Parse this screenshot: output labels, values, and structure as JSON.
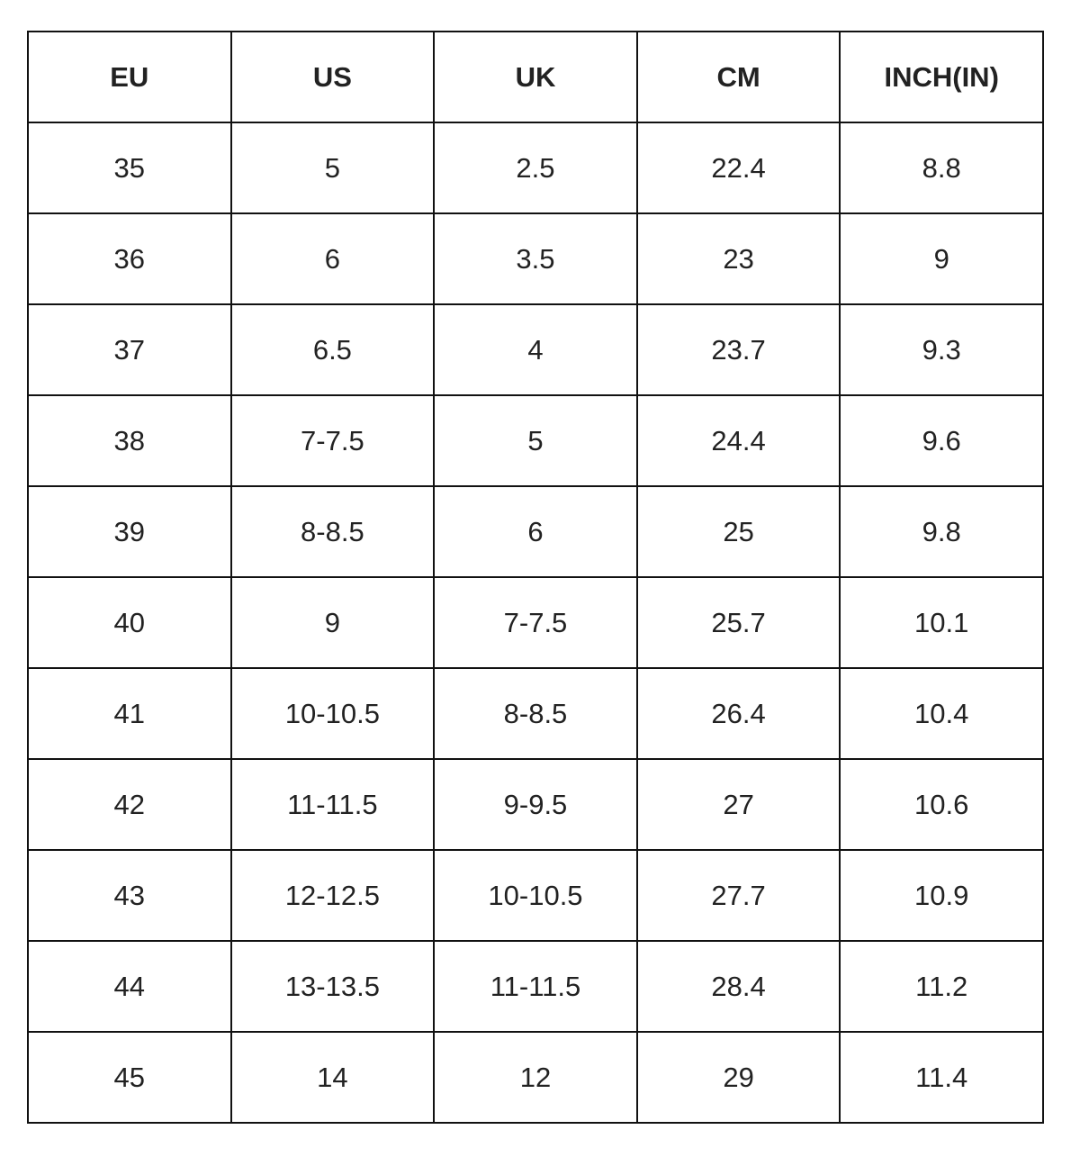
{
  "table": {
    "headers": [
      "EU",
      "US",
      "UK",
      "CM",
      "INCH(IN)"
    ],
    "rows": [
      [
        "35",
        "5",
        "2.5",
        "22.4",
        "8.8"
      ],
      [
        "36",
        "6",
        "3.5",
        "23",
        "9"
      ],
      [
        "37",
        "6.5",
        "4",
        "23.7",
        "9.3"
      ],
      [
        "38",
        "7-7.5",
        "5",
        "24.4",
        "9.6"
      ],
      [
        "39",
        "8-8.5",
        "6",
        "25",
        "9.8"
      ],
      [
        "40",
        "9",
        "7-7.5",
        "25.7",
        "10.1"
      ],
      [
        "41",
        "10-10.5",
        "8-8.5",
        "26.4",
        "10.4"
      ],
      [
        "42",
        "11-11.5",
        "9-9.5",
        "27",
        "10.6"
      ],
      [
        "43",
        "12-12.5",
        "10-10.5",
        "27.7",
        "10.9"
      ],
      [
        "44",
        "13-13.5",
        "11-11.5",
        "28.4",
        "11.2"
      ],
      [
        "45",
        "14",
        "12",
        "29",
        "11.4"
      ]
    ]
  }
}
